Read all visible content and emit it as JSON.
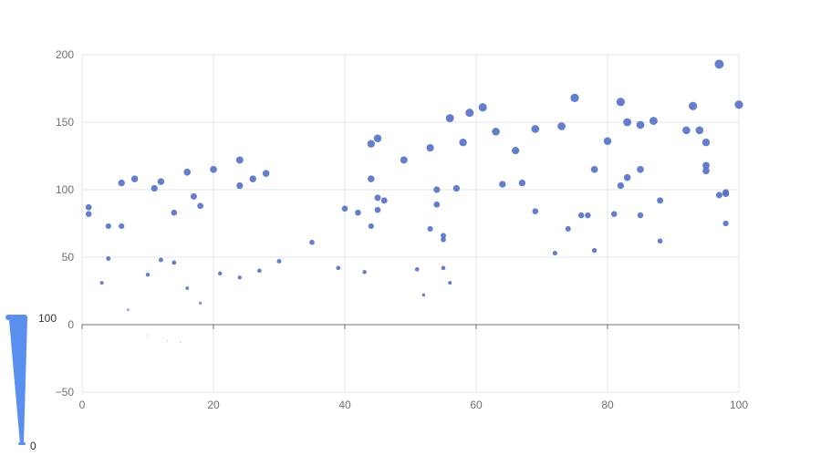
{
  "chart_data": {
    "type": "scatter",
    "xlim": [
      0,
      100
    ],
    "ylim": [
      -50,
      200
    ],
    "x_ticks": [
      0,
      20,
      40,
      60,
      80,
      100
    ],
    "y_ticks": [
      -50,
      0,
      50,
      100,
      150,
      200
    ],
    "grid": true,
    "symbol_size_encodes": "y",
    "colors": {
      "point": "#5470c6",
      "grid": "#e0e6f1",
      "axis": "#6e7079",
      "visual_map": "#5a8ff0"
    },
    "points": [
      [
        1,
        87
      ],
      [
        1,
        82
      ],
      [
        3,
        31
      ],
      [
        4,
        73
      ],
      [
        4,
        49
      ],
      [
        6,
        105
      ],
      [
        6,
        73
      ],
      [
        7,
        11
      ],
      [
        8,
        108
      ],
      [
        10,
        -8
      ],
      [
        10,
        37
      ],
      [
        11,
        101
      ],
      [
        12,
        106
      ],
      [
        12,
        48
      ],
      [
        13,
        -12
      ],
      [
        14,
        83
      ],
      [
        14,
        46
      ],
      [
        15,
        -13
      ],
      [
        16,
        113
      ],
      [
        16,
        27
      ],
      [
        17,
        95
      ],
      [
        18,
        88
      ],
      [
        18,
        16
      ],
      [
        20,
        115
      ],
      [
        21,
        38
      ],
      [
        24,
        122
      ],
      [
        24,
        103
      ],
      [
        24,
        35
      ],
      [
        26,
        108
      ],
      [
        27,
        40
      ],
      [
        28,
        112
      ],
      [
        30,
        47
      ],
      [
        35,
        61
      ],
      [
        39,
        42
      ],
      [
        40,
        86
      ],
      [
        42,
        83
      ],
      [
        43,
        39
      ],
      [
        44,
        134
      ],
      [
        44,
        108
      ],
      [
        44,
        73
      ],
      [
        45,
        138
      ],
      [
        45,
        94
      ],
      [
        45,
        85
      ],
      [
        46,
        92
      ],
      [
        49,
        122
      ],
      [
        51,
        41
      ],
      [
        52,
        22
      ],
      [
        53,
        131
      ],
      [
        53,
        71
      ],
      [
        54,
        100
      ],
      [
        54,
        89
      ],
      [
        55,
        66
      ],
      [
        55,
        63
      ],
      [
        55,
        42
      ],
      [
        56,
        153
      ],
      [
        56,
        31
      ],
      [
        57,
        101
      ],
      [
        58,
        135
      ],
      [
        59,
        157
      ],
      [
        61,
        161
      ],
      [
        63,
        143
      ],
      [
        64,
        104
      ],
      [
        66,
        129
      ],
      [
        67,
        105
      ],
      [
        69,
        145
      ],
      [
        69,
        84
      ],
      [
        72,
        53
      ],
      [
        73,
        147
      ],
      [
        74,
        71
      ],
      [
        75,
        168
      ],
      [
        76,
        81
      ],
      [
        77,
        81
      ],
      [
        78,
        115
      ],
      [
        78,
        55
      ],
      [
        80,
        136
      ],
      [
        81,
        82
      ],
      [
        82,
        165
      ],
      [
        82,
        103
      ],
      [
        83,
        150
      ],
      [
        83,
        109
      ],
      [
        85,
        148
      ],
      [
        85,
        115
      ],
      [
        85,
        81
      ],
      [
        87,
        151
      ],
      [
        88,
        92
      ],
      [
        88,
        62
      ],
      [
        92,
        144
      ],
      [
        93,
        162
      ],
      [
        94,
        144
      ],
      [
        95,
        135
      ],
      [
        95,
        118
      ],
      [
        95,
        114
      ],
      [
        97,
        193
      ],
      [
        97,
        96
      ],
      [
        98,
        98
      ],
      [
        98,
        97
      ],
      [
        98,
        75
      ],
      [
        100,
        163
      ]
    ]
  },
  "visual_map": {
    "max_label": "100",
    "min_label": "0"
  }
}
